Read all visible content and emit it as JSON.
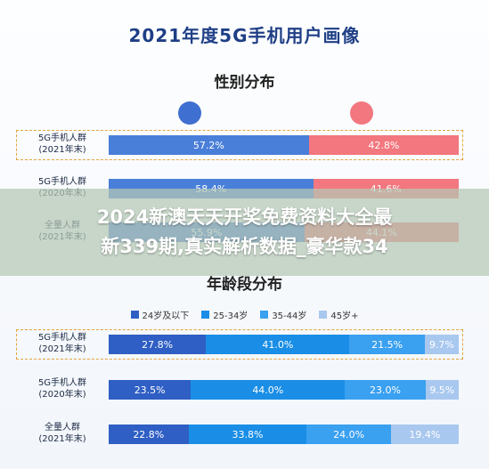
{
  "page": {
    "main_title": "2021年度5G手机用户画像",
    "gender_title": "性别分布",
    "age_title": "年龄段分布",
    "banner_line1": "2024新澳天天开奖免费资料大全最",
    "banner_line2": "新339期,真实解析数据_豪华款34"
  },
  "colors": {
    "male": "#4a7fd9",
    "female": "#f2777f",
    "age_0": "#2f5fc4",
    "age_1": "#1a8ee6",
    "age_2": "#3aa0f0",
    "age_3": "#a9c8ef",
    "frame": "#e6a23c"
  },
  "chart_data": [
    {
      "type": "bar",
      "stacked": true,
      "orientation": "horizontal",
      "title": "性别分布",
      "categories": [
        "5G手机人群\n(2021年末)",
        "5G手机人群\n(2020年末)",
        "全量人群\n(2021年末)"
      ],
      "series": [
        {
          "values": [
            57.2,
            58.4,
            55.9
          ]
        },
        {
          "values": [
            42.8,
            41.6,
            44.1
          ]
        }
      ],
      "labels": [
        [
          "57.2%",
          "42.8%"
        ],
        [
          "58.4%",
          "41.6%"
        ],
        [
          "55.9%",
          "44.1%"
        ]
      ]
    },
    {
      "type": "bar",
      "stacked": true,
      "orientation": "horizontal",
      "title": "年龄段分布",
      "legend": [
        "24岁及以下",
        "25-34岁",
        "35-44岁",
        "45岁+"
      ],
      "legend_position": "top",
      "categories": [
        "5G手机人群\n(2021年末)",
        "5G手机人群\n(2020年末)",
        "全量人群\n(2021年末)"
      ],
      "series": [
        {
          "name": "24岁及以下",
          "values": [
            27.8,
            23.5,
            22.8
          ]
        },
        {
          "name": "25-34岁",
          "values": [
            41.0,
            44.0,
            33.8
          ]
        },
        {
          "name": "35-44岁",
          "values": [
            21.5,
            23.0,
            24.0
          ]
        },
        {
          "name": "45岁+",
          "values": [
            9.7,
            9.5,
            19.4
          ]
        }
      ],
      "labels": [
        [
          "27.8%",
          "41.0%",
          "21.5%",
          "9.7%"
        ],
        [
          "23.5%",
          "44.0%",
          "23.0%",
          "9.5%"
        ],
        [
          "22.8%",
          "33.8%",
          "24.0%",
          "19.4%"
        ]
      ]
    }
  ]
}
